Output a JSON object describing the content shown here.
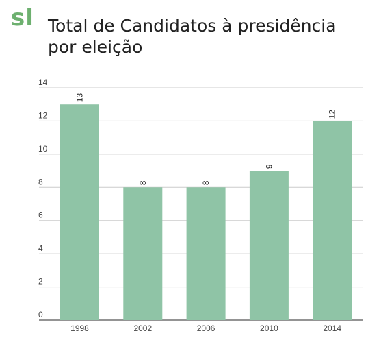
{
  "logo": {
    "text": "sl",
    "color": "#6db06f"
  },
  "chart_data": {
    "type": "bar",
    "title": "Total de Candidatos à presidência por eleição",
    "categories": [
      "1998",
      "2002",
      "2006",
      "2010",
      "2014"
    ],
    "values": [
      13,
      8,
      8,
      9,
      12
    ],
    "data_labels": [
      "13",
      "8",
      "8",
      "9",
      "12"
    ],
    "yticks": [
      "0",
      "2",
      "4",
      "6",
      "8",
      "10",
      "12",
      "14"
    ],
    "ylim": [
      0,
      14
    ],
    "grid": true,
    "bar_color": "#8fc4a6",
    "grid_color": "#cccccc"
  }
}
